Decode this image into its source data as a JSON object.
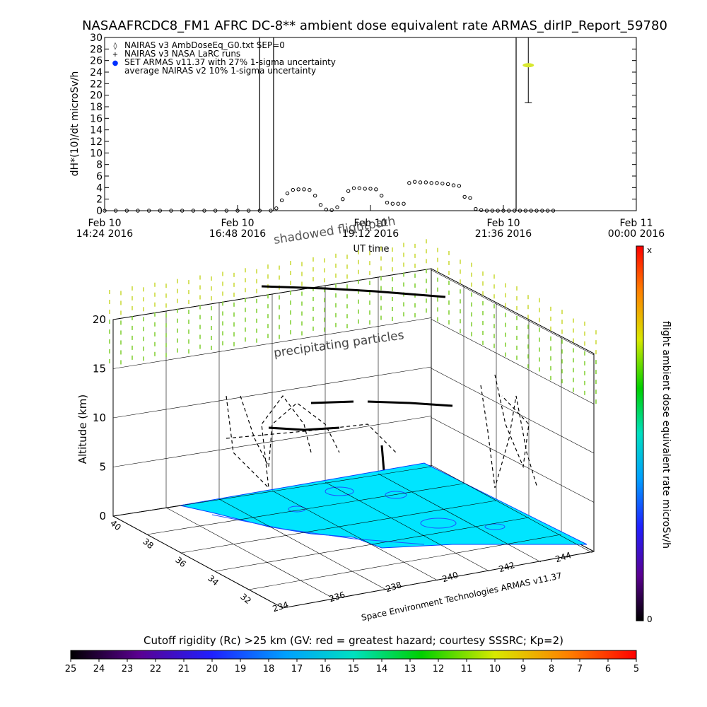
{
  "title": "NASAAFRCDC8_FM1 AFRC DC-8** ambient dose equivalent rate ARMAS_dirIP_Report_59780",
  "chart_data": [
    {
      "type": "scatter",
      "ylabel": "dH*(10)/dt microSv/h",
      "xlabel": "UT time",
      "ylim": [
        0,
        30
      ],
      "yticks": [
        "0",
        "2",
        "4",
        "6",
        "8",
        "10",
        "12",
        "14",
        "16",
        "18",
        "20",
        "22",
        "24",
        "26",
        "28",
        "30"
      ],
      "xticks": [
        {
          "line1": "Feb 10",
          "line2": "14:24 2016"
        },
        {
          "line1": "Feb 10",
          "line2": "16:48 2016"
        },
        {
          "line1": "Feb 10",
          "line2": "19:12 2016"
        },
        {
          "line1": "Feb 10",
          "line2": "21:36 2016"
        },
        {
          "line1": "Feb 11",
          "line2": "00:00 2016"
        }
      ],
      "legend": [
        {
          "marker": "◊",
          "label": "NAIRAS v3 AmbDoseEq_G0.txt SEP=0"
        },
        {
          "marker": "+",
          "label": "NAIRAS v3 NASA LaRC runs"
        },
        {
          "marker": "●",
          "label": "SET ARMAS v11.37 with 27% 1-sigma uncertainty"
        },
        {
          "marker": "",
          "label": "average NAIRAS v2 10% 1-sigma uncertainty"
        }
      ],
      "legend_position": "top-left",
      "series": [
        {
          "marker": "diamond",
          "x_hours": [
            14.4,
            14.6,
            14.8,
            15.0,
            15.2,
            15.4,
            15.6,
            15.8,
            16.0,
            16.2,
            16.4,
            16.6,
            16.8,
            17.0,
            17.2,
            17.4,
            17.5,
            17.6,
            17.7,
            17.8,
            17.9,
            18.0,
            18.1,
            18.2,
            18.3,
            18.4,
            18.5,
            18.6,
            18.7,
            18.8,
            18.9,
            19.0,
            19.1,
            19.2,
            19.3,
            19.4,
            19.5,
            19.6,
            19.7,
            19.8,
            19.9,
            20.0,
            20.1,
            20.2,
            20.3,
            20.4,
            20.5,
            20.6,
            20.7,
            20.8,
            20.9,
            21.0,
            21.1,
            21.2,
            21.3,
            21.4,
            21.5,
            21.6,
            21.7,
            21.8,
            21.9,
            22.0,
            22.1,
            22.2,
            22.3,
            22.4,
            22.5
          ],
          "values": [
            0,
            0,
            0,
            0,
            0,
            0,
            0,
            0,
            0,
            0,
            0,
            0,
            0,
            0,
            0,
            0,
            0.4,
            1.8,
            3.0,
            3.6,
            3.7,
            3.7,
            3.6,
            2.6,
            1.0,
            0.2,
            0.1,
            0.6,
            2.0,
            3.4,
            3.9,
            3.9,
            3.8,
            3.8,
            3.7,
            2.6,
            1.4,
            1.2,
            1.2,
            1.2,
            4.8,
            5.0,
            4.9,
            4.9,
            4.8,
            4.8,
            4.7,
            4.6,
            4.4,
            4.3,
            2.4,
            2.2,
            0.3,
            0.1,
            0,
            0,
            0,
            0,
            0,
            0,
            0,
            0,
            0,
            0,
            0,
            0,
            0
          ]
        },
        {
          "marker": "ellipse",
          "x_hours": [
            22.05
          ],
          "values": [
            25.2
          ],
          "y_error": [
            [
              18.7,
              30
            ]
          ]
        }
      ],
      "vertical_lines_hours": [
        17.2,
        17.45,
        21.83
      ],
      "annotation": "shadowed flightpath"
    },
    {
      "type": "surface3d",
      "zlabel": "Altitude (km)",
      "zticks": [
        "0",
        "5",
        "10",
        "15",
        "20"
      ],
      "lat_ticks": [
        "32",
        "34",
        "36",
        "38",
        "40"
      ],
      "lon_ticks": [
        "234",
        "236",
        "238",
        "240",
        "242",
        "244"
      ],
      "annotation": "precipitating particles",
      "credit": "Space Environment Technologies ARMAS v11.37",
      "colorbar_label": "flight ambient dose equivalent rate microSv/h",
      "colorbar_top": "x",
      "colorbar_bottom": "0",
      "surface_color": "#00e5ff",
      "particle_color": "#7ccd2a"
    }
  ],
  "rigidity": {
    "label": "Cutoff rigidity (Rc) >25 km (GV: red = greatest hazard; courtesy SSSRC; Kp=2)",
    "ticks": [
      "25",
      "24",
      "23",
      "22",
      "21",
      "20",
      "19",
      "18",
      "17",
      "16",
      "15",
      "14",
      "13",
      "12",
      "11",
      "10",
      "9",
      "8",
      "7",
      "6",
      "5"
    ]
  }
}
